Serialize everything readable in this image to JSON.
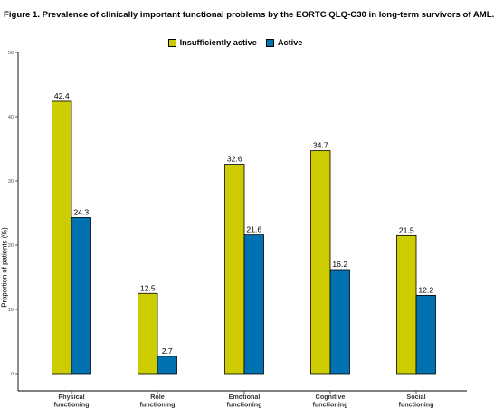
{
  "chart_data": {
    "type": "bar",
    "title": "Figure 1. Prevalence of clinically important functional problems by the EORTC QLQ-C30 in long-term survivors of AML.",
    "xlabel": "",
    "ylabel": "Proportion of patients (%)",
    "ylim": [
      0,
      50
    ],
    "yticks": [
      "0",
      "10",
      "20",
      "30",
      "40",
      "50"
    ],
    "grid": false,
    "legend_position": "top",
    "categories": [
      [
        "Physical",
        "functioning"
      ],
      [
        "Role",
        "functioning"
      ],
      [
        "Emotional",
        "functioning"
      ],
      [
        "Cognitive",
        "functioning"
      ],
      [
        "Social",
        "functioning"
      ]
    ],
    "series": [
      {
        "name": "Insufficiently active",
        "color": "#cccc00",
        "values": [
          42.4,
          12.5,
          32.6,
          34.7,
          21.5
        ],
        "labels": [
          "42.4",
          "12.5",
          "32.6",
          "34.7",
          "21.5"
        ]
      },
      {
        "name": "Active",
        "color": "#0072b2",
        "values": [
          24.3,
          2.7,
          21.6,
          16.2,
          12.2
        ],
        "labels": [
          "24.3",
          "2.7",
          "21.6",
          "16.2",
          "12.2"
        ]
      }
    ]
  }
}
